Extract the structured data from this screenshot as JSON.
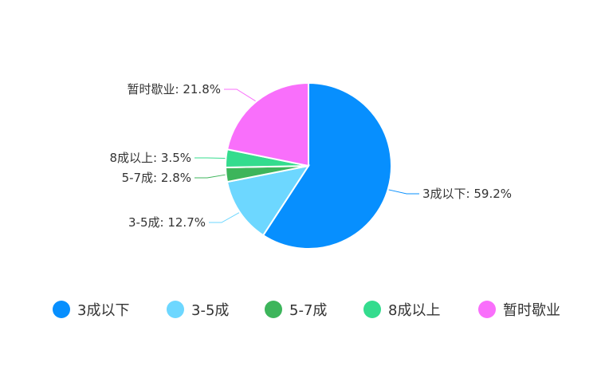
{
  "chart_data": {
    "type": "pie",
    "title": "",
    "categories": [
      "3成以下",
      "3-5成",
      "5-7成",
      "8成以上",
      "暂时歇业"
    ],
    "values": [
      59.2,
      12.7,
      2.8,
      3.5,
      21.8
    ],
    "unit": "%",
    "colors": [
      "#078ffe",
      "#6dd7ff",
      "#3db55b",
      "#34dc8e",
      "#f96ffb"
    ],
    "data_labels": [
      "3成以下: 59.2%",
      "3-5成: 12.7%",
      "5-7成: 2.8%",
      "8成以上: 3.5%",
      "暂时歇业: 21.8%"
    ],
    "legend_position": "bottom",
    "start_angle": "12 o'clock, clockwise"
  },
  "legend": {
    "items": [
      {
        "label": "3成以下",
        "color": "#078ffe"
      },
      {
        "label": "3-5成",
        "color": "#6dd7ff"
      },
      {
        "label": "5-7成",
        "color": "#3db55b"
      },
      {
        "label": "8成以上",
        "color": "#34dc8e"
      },
      {
        "label": "暂时歇业",
        "color": "#f96ffb"
      }
    ]
  }
}
